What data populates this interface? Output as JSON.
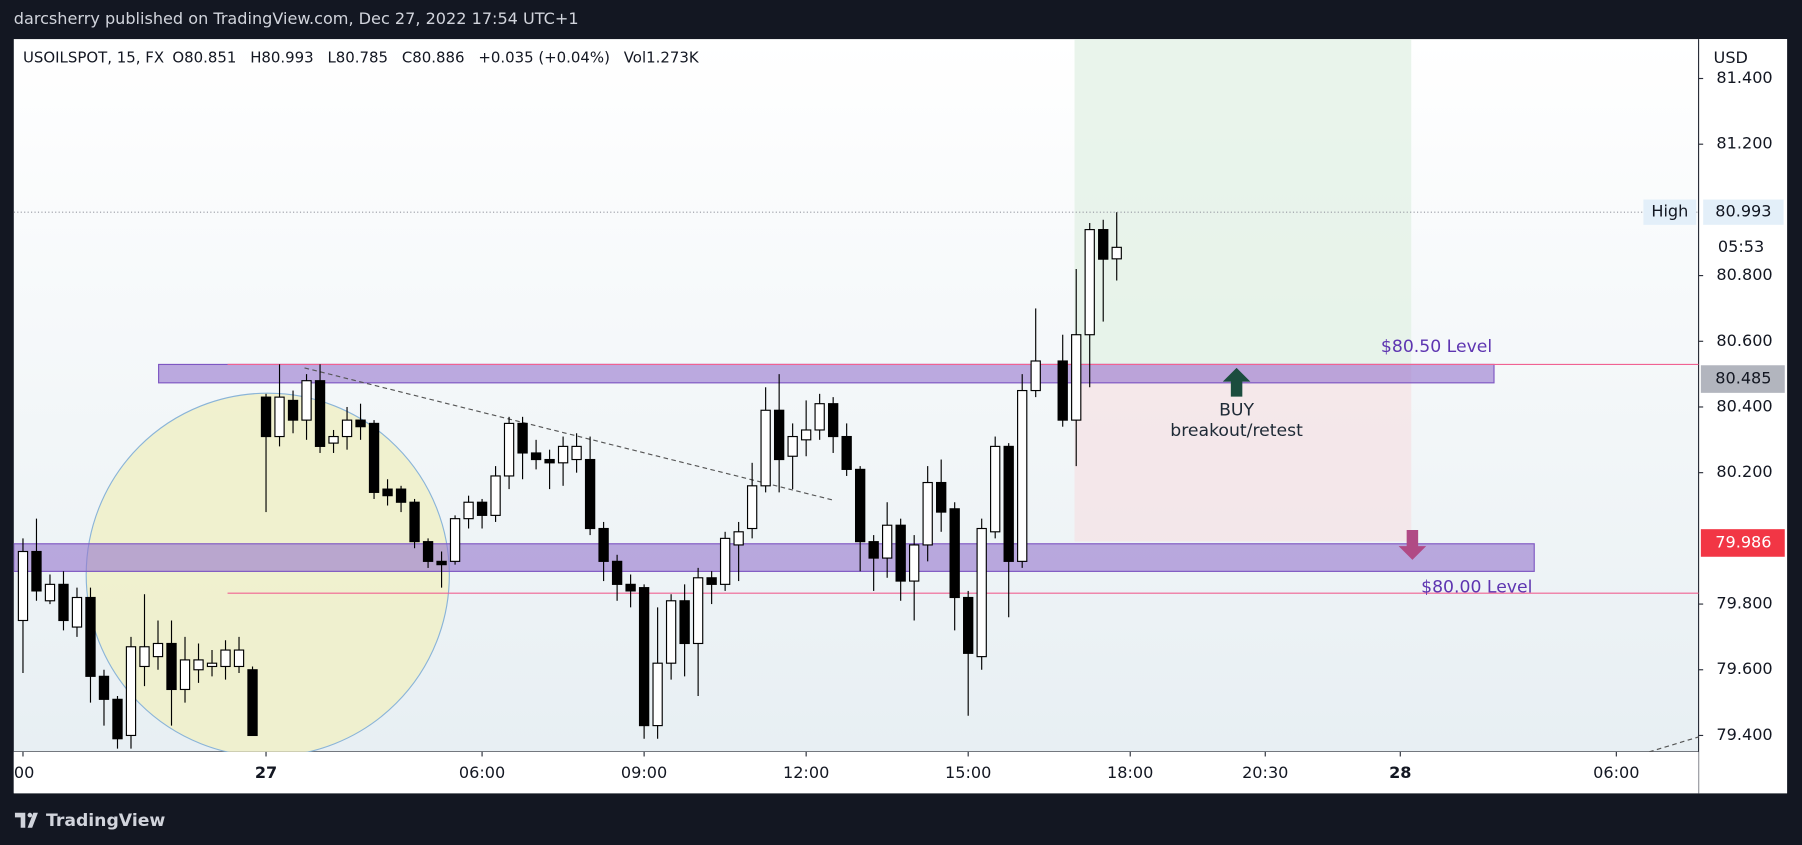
{
  "chart_data": {
    "type": "candlestick",
    "header": "darcsherry published on TradingView.com, Dec 27, 2022 17:54 UTC+1",
    "title": "USOILSPOT, 15, FX",
    "ohlc_legend": [
      "O80.851",
      "H80.993",
      "L80.785",
      "C80.886",
      "+0.035 (+0.04%)",
      "Vol1.273K"
    ],
    "currency": "USD",
    "brand": "TradingView",
    "up_color": "#ffffff",
    "down_color": "#000000",
    "x": [
      0,
      1,
      2,
      3,
      4,
      5,
      6,
      7,
      8,
      9,
      10,
      11,
      12,
      13,
      14,
      15,
      16,
      17,
      18,
      19,
      20,
      21,
      22,
      23,
      24,
      25,
      26,
      27,
      28,
      29,
      30,
      31,
      32,
      33,
      34,
      35,
      36,
      37,
      38,
      39,
      40,
      41,
      42,
      43,
      44,
      45,
      46,
      47,
      48,
      49,
      50,
      51,
      52,
      53,
      54,
      55,
      56,
      57,
      58,
      59,
      60,
      61,
      62,
      63,
      64,
      65,
      66,
      67,
      68,
      69,
      70,
      71,
      72,
      73,
      74,
      75,
      77,
      78,
      79,
      80,
      81
    ],
    "open": [
      79.75,
      79.96,
      79.81,
      79.86,
      79.73,
      79.82,
      79.58,
      79.51,
      79.4,
      79.61,
      79.64,
      79.68,
      79.54,
      79.6,
      79.61,
      79.61,
      79.61,
      79.6,
      80.43,
      80.31,
      80.42,
      80.36,
      80.48,
      80.29,
      80.31,
      80.36,
      80.35,
      80.15,
      80.15,
      80.11,
      79.99,
      79.93,
      79.93,
      80.06,
      80.11,
      80.07,
      80.19,
      80.35,
      80.26,
      80.24,
      80.23,
      80.24,
      80.24,
      80.03,
      79.93,
      79.86,
      79.85,
      79.43,
      79.62,
      79.81,
      79.68,
      79.88,
      79.86,
      79.98,
      80.03,
      80.16,
      80.39,
      80.25,
      80.3,
      80.33,
      80.41,
      80.31,
      80.21,
      79.99,
      79.94,
      80.04,
      79.87,
      79.98,
      80.17,
      80.09,
      79.82,
      79.64,
      80.02,
      80.28,
      79.93,
      80.45,
      80.54,
      80.36,
      80.62,
      80.94,
      80.851
    ],
    "high": [
      80.0,
      80.06,
      79.89,
      79.9,
      79.85,
      79.85,
      79.6,
      79.52,
      79.7,
      79.83,
      79.75,
      79.75,
      79.7,
      79.68,
      79.66,
      79.69,
      79.7,
      79.61,
      80.44,
      80.53,
      80.45,
      80.5,
      80.53,
      80.33,
      80.4,
      80.41,
      80.36,
      80.18,
      80.16,
      80.12,
      80.0,
      79.96,
      80.07,
      80.13,
      80.12,
      80.22,
      80.37,
      80.37,
      80.3,
      80.27,
      80.31,
      80.32,
      80.31,
      80.05,
      79.95,
      79.89,
      79.86,
      79.79,
      79.83,
      79.86,
      79.91,
      79.9,
      80.02,
      80.05,
      80.23,
      80.46,
      80.5,
      80.35,
      80.42,
      80.44,
      80.43,
      80.35,
      80.22,
      80.01,
      80.11,
      80.06,
      80.01,
      80.22,
      80.24,
      80.11,
      79.84,
      80.06,
      80.31,
      80.29,
      80.5,
      80.7,
      80.62,
      80.82,
      80.96,
      80.97,
      80.993
    ],
    "low": [
      79.59,
      79.81,
      79.8,
      79.72,
      79.7,
      79.5,
      79.43,
      79.36,
      79.36,
      79.55,
      79.6,
      79.43,
      79.5,
      79.56,
      79.58,
      79.57,
      79.59,
      79.4,
      80.08,
      80.28,
      80.32,
      80.3,
      80.26,
      80.26,
      80.27,
      80.3,
      80.12,
      80.1,
      80.08,
      79.97,
      79.91,
      79.85,
      79.92,
      80.03,
      80.03,
      80.05,
      80.15,
      80.18,
      80.21,
      80.15,
      80.16,
      80.2,
      80.01,
      79.87,
      79.81,
      79.79,
      79.39,
      79.39,
      79.57,
      79.58,
      79.52,
      79.8,
      79.84,
      79.87,
      80.0,
      80.14,
      80.14,
      80.15,
      80.25,
      80.3,
      80.26,
      80.19,
      79.9,
      79.84,
      79.88,
      79.81,
      79.75,
      79.93,
      80.02,
      79.72,
      79.46,
      79.6,
      80.0,
      79.76,
      79.91,
      80.43,
      80.34,
      80.22,
      80.46,
      80.66,
      80.785
    ],
    "close": [
      79.96,
      79.84,
      79.86,
      79.75,
      79.82,
      79.58,
      79.51,
      79.39,
      79.67,
      79.67,
      79.68,
      79.54,
      79.63,
      79.63,
      79.62,
      79.66,
      79.66,
      79.4,
      80.31,
      80.43,
      80.36,
      80.48,
      80.28,
      80.31,
      80.36,
      80.34,
      80.14,
      80.13,
      80.11,
      79.99,
      79.93,
      79.92,
      80.06,
      80.11,
      80.07,
      80.19,
      80.35,
      80.26,
      80.24,
      80.23,
      80.28,
      80.28,
      80.03,
      79.93,
      79.86,
      79.84,
      79.43,
      79.62,
      79.81,
      79.68,
      79.88,
      79.86,
      80.0,
      80.02,
      80.16,
      80.39,
      80.24,
      80.31,
      80.33,
      80.41,
      80.31,
      80.21,
      79.99,
      79.94,
      80.04,
      79.87,
      79.98,
      80.17,
      80.08,
      79.82,
      79.65,
      80.03,
      80.28,
      79.93,
      80.45,
      80.54,
      80.36,
      80.62,
      80.94,
      80.85,
      80.886
    ],
    "xlim": [
      -0.68,
      124.09
    ],
    "xticks": [
      {
        "value": 0,
        "label": "00"
      },
      18,
      {
        "value": 34,
        "label": "06:00"
      },
      {
        "value": 46,
        "label": "09:00"
      },
      {
        "value": 58,
        "label": "12:00"
      },
      {
        "value": 70,
        "label": "15:00"
      },
      {
        "value": 82,
        "label": "18:00"
      },
      {
        "value": 92,
        "label": "20:30"
      },
      28,
      {
        "value": 118,
        "label": "06:00"
      }
    ],
    "xtick_day_labels": [
      {
        "value": 18,
        "label": "27"
      },
      {
        "value": 102,
        "label": "28"
      }
    ],
    "ylim": [
      79.35,
      81.52
    ],
    "yticks": [
      {
        "value": 79.4,
        "label": "79.400"
      },
      {
        "value": 79.6,
        "label": "79.600"
      },
      {
        "value": 79.8,
        "label": "79.800"
      },
      {
        "value": 80.2,
        "label": "80.200"
      },
      {
        "value": 80.4,
        "label": "80.400"
      },
      {
        "value": 80.6,
        "label": "80.600"
      },
      {
        "value": 80.8,
        "label": "80.800"
      },
      {
        "value": 81.2,
        "label": "81.200"
      },
      {
        "value": 81.4,
        "label": "81.400"
      }
    ],
    "grid": false,
    "high_tag": {
      "label": "High",
      "value": 80.993
    },
    "countdown": "05:53",
    "level_tags": [
      {
        "value": 80.485,
        "color": "#b2b5be",
        "text_color": "#131722"
      },
      {
        "value": 79.986,
        "color": "#f23645",
        "text_color": "#ffffff"
      }
    ],
    "annotations": {
      "upper_level": "$80.50 Level",
      "lower_level": "$80.00 Level",
      "signal": "BUY",
      "signal_note": "breakout/retest"
    }
  }
}
